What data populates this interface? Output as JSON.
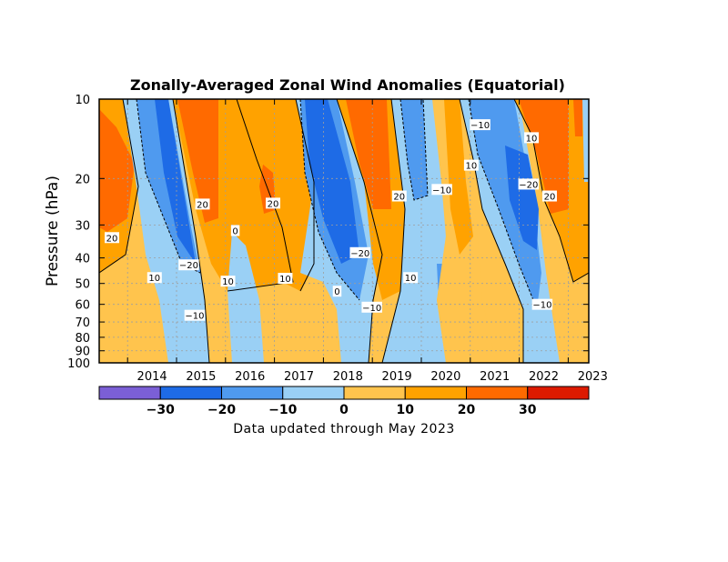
{
  "chart_data": {
    "type": "heatmap",
    "title": "Zonally-Averaged Zonal Wind Anomalies (Equatorial)",
    "ylabel": "Pressure (hPa)",
    "xlabel": "",
    "y_scale": "log",
    "y_reversed": true,
    "ylim": [
      100,
      10
    ],
    "xlim": [
      "2013-06",
      "2023-05"
    ],
    "x_ticks": [
      "2014",
      "2015",
      "2016",
      "2017",
      "2018",
      "2019",
      "2020",
      "2021",
      "2022",
      "2023"
    ],
    "y_ticks": [
      "10",
      "20",
      "30",
      "40",
      "50",
      "60",
      "70",
      "80",
      "90",
      "100"
    ],
    "grid": true,
    "colorbar": {
      "ticks": [
        "−30",
        "−20",
        "−10",
        "0",
        "10",
        "20",
        "30"
      ],
      "bins": [
        {
          "range": "< -30",
          "color": "#7b5fd6"
        },
        {
          "range": "-30 to -20",
          "color": "#1e6be6"
        },
        {
          "range": "-20 to -10",
          "color": "#4f9aef"
        },
        {
          "range": "-10 to 0",
          "color": "#9ad0f5"
        },
        {
          "range": "0 to 10",
          "color": "#ffc44d"
        },
        {
          "range": "10 to 20",
          "color": "#ffa200"
        },
        {
          "range": "20 to 30",
          "color": "#ff6a00"
        },
        {
          "range": "> 30",
          "color": "#dd1a00"
        }
      ]
    },
    "contour_labels": [
      {
        "text": "20",
        "x": 2013.68,
        "p": 33.5
      },
      {
        "text": "10",
        "x": 2014.55,
        "p": 47.5
      },
      {
        "text": "−20",
        "x": 2015.25,
        "p": 42.5
      },
      {
        "text": "20",
        "x": 2015.53,
        "p": 25.0
      },
      {
        "text": "−10",
        "x": 2015.37,
        "p": 66.0
      },
      {
        "text": "10",
        "x": 2016.05,
        "p": 49.0
      },
      {
        "text": "0",
        "x": 2016.2,
        "p": 31.5
      },
      {
        "text": "20",
        "x": 2016.97,
        "p": 24.8
      },
      {
        "text": "10",
        "x": 2017.22,
        "p": 47.8
      },
      {
        "text": "0",
        "x": 2018.28,
        "p": 53.5
      },
      {
        "text": "−20",
        "x": 2018.75,
        "p": 38.2
      },
      {
        "text": "−10",
        "x": 2018.99,
        "p": 61.5
      },
      {
        "text": "20",
        "x": 2019.55,
        "p": 23.3
      },
      {
        "text": "10",
        "x": 2019.78,
        "p": 47.5
      },
      {
        "text": "−10",
        "x": 2020.42,
        "p": 22.0
      },
      {
        "text": "−10",
        "x": 2021.2,
        "p": 12.5
      },
      {
        "text": "10",
        "x": 2021.02,
        "p": 17.8
      },
      {
        "text": "10",
        "x": 2022.25,
        "p": 14.0
      },
      {
        "text": "−20",
        "x": 2022.19,
        "p": 21.0
      },
      {
        "text": "20",
        "x": 2022.62,
        "p": 23.3
      },
      {
        "text": "−10",
        "x": 2022.47,
        "p": 60.0
      }
    ]
  },
  "footer": "Data updated through May 2023"
}
